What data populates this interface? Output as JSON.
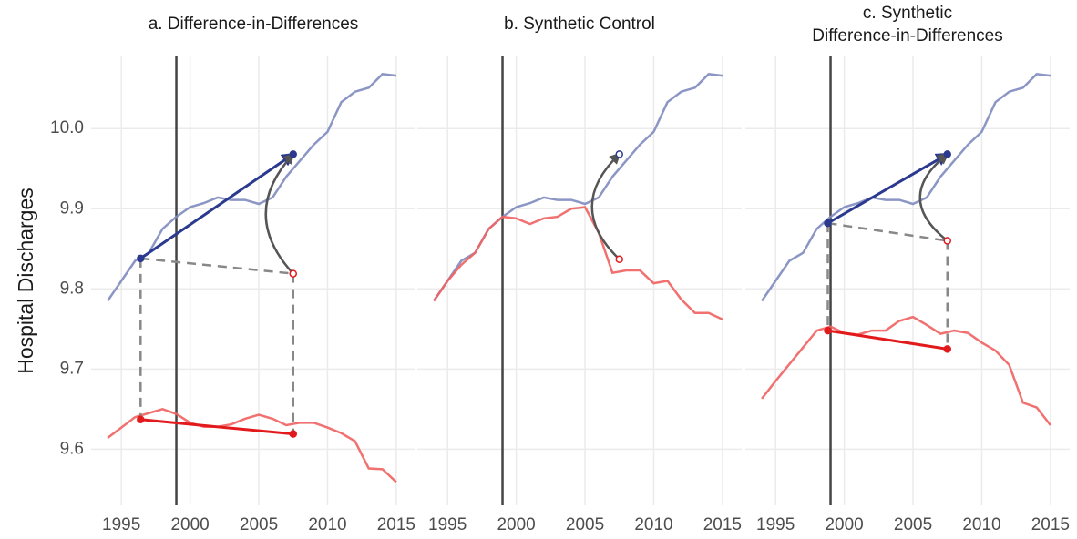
{
  "chart_data": [
    {
      "type": "line",
      "title": [
        "a. Difference-in-Differences"
      ],
      "ylabel": "Hospital Discharges",
      "x": [
        1994,
        1995,
        1996,
        1997,
        1998,
        1999,
        2000,
        2001,
        2002,
        2003,
        2004,
        2005,
        2006,
        2007,
        2008,
        2009,
        2010,
        2011,
        2012,
        2013,
        2014,
        2015
      ],
      "series": [
        {
          "color": "#7f8bbf",
          "values": [
            9.785,
            9.81,
            9.835,
            9.845,
            9.875,
            9.89,
            9.902,
            9.907,
            9.914,
            9.911,
            9.911,
            9.906,
            9.914,
            9.94,
            9.96,
            9.98,
            9.996,
            10.033,
            10.046,
            10.051,
            10.068,
            10.066
          ]
        },
        {
          "color": "#ef6262",
          "values": [
            9.614,
            9.627,
            9.64,
            9.645,
            9.65,
            9.644,
            9.633,
            9.628,
            9.628,
            9.631,
            9.638,
            9.643,
            9.638,
            9.63,
            9.633,
            9.633,
            9.627,
            9.62,
            9.61,
            9.576,
            9.575,
            9.559
          ]
        }
      ],
      "vlines": [
        1999
      ],
      "annotations": [
        {
          "style": "dashed",
          "color": "#888888",
          "x": [
            1996.4,
            2007.5
          ],
          "y": [
            9.838,
            9.819
          ]
        },
        {
          "style": "dashed",
          "color": "#888888",
          "x": [
            1996.4,
            1996.4
          ],
          "y": [
            9.838,
            9.637
          ]
        },
        {
          "style": "dashed",
          "color": "#888888",
          "x": [
            2007.5,
            2007.5
          ],
          "y": [
            9.819,
            9.619
          ]
        },
        {
          "style": "arrow",
          "color": "#2b3a8f",
          "x": [
            1996.4,
            2007.5
          ],
          "y": [
            9.838,
            9.968
          ]
        },
        {
          "style": "line",
          "color": "#e31a1c",
          "x": [
            1996.4,
            2007.5
          ],
          "y": [
            9.637,
            9.619
          ]
        },
        {
          "style": "curve",
          "color": "#555555",
          "x": [
            2007.5,
            2007.5
          ],
          "y": [
            9.819,
            9.968
          ]
        }
      ],
      "points": [
        {
          "x": 1996.4,
          "y": 9.838,
          "color": "#2b3a8f",
          "open": false
        },
        {
          "x": 2007.5,
          "y": 9.968,
          "color": "#2b3a8f",
          "open": false
        },
        {
          "x": 2007.5,
          "y": 9.819,
          "color": "#e31a1c",
          "open": true
        },
        {
          "x": 1996.4,
          "y": 9.637,
          "color": "#e31a1c",
          "open": false
        },
        {
          "x": 2007.5,
          "y": 9.619,
          "color": "#e31a1c",
          "open": false
        }
      ],
      "xlim": [
        1992.8,
        2016.4
      ],
      "xticks": [
        1995,
        2000,
        2005,
        2010,
        2015
      ],
      "ylim": [
        9.53,
        10.09
      ],
      "yticks": [
        9.6,
        9.7,
        9.8,
        9.9,
        {
          "value": 10,
          "label": "10.0"
        }
      ],
      "grid": true
    },
    {
      "type": "line",
      "title": [
        "b. Synthetic Control"
      ],
      "x": [
        1994,
        1995,
        1996,
        1997,
        1998,
        1999,
        2000,
        2001,
        2002,
        2003,
        2004,
        2005,
        2006,
        2007,
        2008,
        2009,
        2010,
        2011,
        2012,
        2013,
        2014,
        2015
      ],
      "series": [
        {
          "color": "#7f8bbf",
          "values": [
            9.785,
            9.81,
            9.835,
            9.845,
            9.875,
            9.89,
            9.902,
            9.907,
            9.914,
            9.911,
            9.911,
            9.906,
            9.914,
            9.94,
            9.96,
            9.98,
            9.996,
            10.033,
            10.046,
            10.051,
            10.068,
            10.066
          ]
        },
        {
          "color": "#ef6262",
          "values": [
            9.785,
            9.81,
            9.83,
            9.845,
            9.875,
            9.89,
            9.888,
            9.881,
            9.888,
            9.89,
            9.9,
            9.902,
            9.87,
            9.82,
            9.823,
            9.823,
            9.807,
            9.81,
            9.787,
            9.77,
            9.77,
            9.762
          ]
        }
      ],
      "vlines": [
        1999
      ],
      "annotations": [
        {
          "style": "curve",
          "color": "#555555",
          "x": [
            2007.5,
            2007.5
          ],
          "y": [
            9.837,
            9.968
          ]
        }
      ],
      "points": [
        {
          "x": 2007.5,
          "y": 9.837,
          "color": "#e31a1c",
          "open": true
        },
        {
          "x": 2007.5,
          "y": 9.968,
          "color": "#2b3a8f",
          "open": true
        }
      ],
      "xlim": [
        1992.8,
        2016.4
      ],
      "xticks": [
        1995,
        2000,
        2005,
        2010,
        2015
      ],
      "ylim": [
        9.53,
        10.09
      ],
      "yticks": [
        9.6,
        9.7,
        9.8,
        9.9,
        {
          "value": 10,
          "label": "10.0"
        }
      ],
      "grid": true
    },
    {
      "type": "line",
      "title": [
        "c. Synthetic",
        "Difference-in-Differences"
      ],
      "x": [
        1994,
        1995,
        1996,
        1997,
        1998,
        1999,
        2000,
        2001,
        2002,
        2003,
        2004,
        2005,
        2006,
        2007,
        2008,
        2009,
        2010,
        2011,
        2012,
        2013,
        2014,
        2015
      ],
      "series": [
        {
          "color": "#7f8bbf",
          "values": [
            9.785,
            9.81,
            9.835,
            9.845,
            9.875,
            9.89,
            9.902,
            9.907,
            9.914,
            9.911,
            9.911,
            9.906,
            9.914,
            9.94,
            9.96,
            9.98,
            9.996,
            10.033,
            10.046,
            10.051,
            10.068,
            10.066
          ]
        },
        {
          "color": "#ef6262",
          "values": [
            9.663,
            9.685,
            9.706,
            9.727,
            9.748,
            9.753,
            9.745,
            9.743,
            9.748,
            9.748,
            9.76,
            9.765,
            9.755,
            9.744,
            9.748,
            9.745,
            9.733,
            9.723,
            9.705,
            9.658,
            9.652,
            9.63
          ]
        }
      ],
      "vlines": [
        1999
      ],
      "annotations": [
        {
          "style": "dashed",
          "color": "#888888",
          "x": [
            1998.8,
            2007.5
          ],
          "y": [
            9.882,
            9.86
          ]
        },
        {
          "style": "dashed",
          "color": "#888888",
          "x": [
            1998.8,
            1998.8
          ],
          "y": [
            9.882,
            9.748
          ]
        },
        {
          "style": "dashed",
          "color": "#888888",
          "x": [
            2007.5,
            2007.5
          ],
          "y": [
            9.86,
            9.725
          ]
        },
        {
          "style": "arrow",
          "color": "#2b3a8f",
          "x": [
            1998.8,
            2007.5
          ],
          "y": [
            9.882,
            9.968
          ]
        },
        {
          "style": "line",
          "color": "#e31a1c",
          "x": [
            1998.8,
            2007.5
          ],
          "y": [
            9.748,
            9.725
          ]
        },
        {
          "style": "curve",
          "color": "#555555",
          "x": [
            2007.5,
            2007.5
          ],
          "y": [
            9.86,
            9.968
          ]
        }
      ],
      "points": [
        {
          "x": 1998.8,
          "y": 9.882,
          "color": "#2b3a8f",
          "open": false
        },
        {
          "x": 2007.5,
          "y": 9.968,
          "color": "#2b3a8f",
          "open": false
        },
        {
          "x": 2007.5,
          "y": 9.86,
          "color": "#e31a1c",
          "open": true
        },
        {
          "x": 1998.8,
          "y": 9.748,
          "color": "#e31a1c",
          "open": false
        },
        {
          "x": 2007.5,
          "y": 9.725,
          "color": "#e31a1c",
          "open": false
        }
      ],
      "xlim": [
        1992.8,
        2016.4
      ],
      "xticks": [
        1995,
        2000,
        2005,
        2010,
        2015
      ],
      "ylim": [
        9.53,
        10.09
      ],
      "yticks": [
        9.6,
        9.7,
        9.8,
        9.9,
        {
          "value": 10,
          "label": "10.0"
        }
      ],
      "grid": true
    }
  ]
}
